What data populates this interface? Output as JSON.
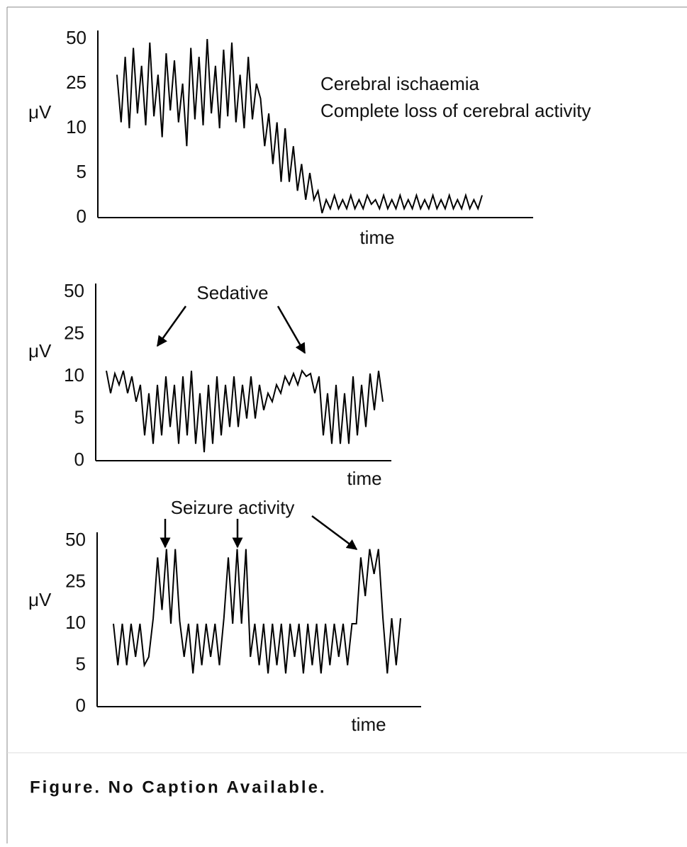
{
  "chart_data": [
    {
      "type": "line",
      "y_label": "μV",
      "x_label": "time",
      "annotations": [
        "Cerebral ischaemia",
        "Complete loss of cerebral activity"
      ],
      "values": [
        30,
        12,
        40,
        10,
        45,
        15,
        35,
        11,
        48,
        14,
        30,
        9,
        42,
        16,
        38,
        12,
        25,
        8,
        45,
        13,
        40,
        11,
        50,
        15,
        35,
        10,
        44,
        14,
        48,
        12,
        30,
        10,
        40,
        13,
        25,
        20,
        8,
        15,
        6,
        12,
        4,
        10,
        4,
        8,
        3,
        6,
        2,
        5,
        2,
        3,
        0.5,
        2,
        1,
        2.5,
        1,
        2,
        1,
        2.5,
        1,
        2,
        1,
        2.5,
        1.5,
        2,
        1,
        2.5,
        1,
        2,
        1,
        2.5,
        1,
        2,
        1,
        2.5,
        1,
        2,
        1,
        2.5,
        1,
        2,
        1,
        2.5,
        1,
        2,
        1,
        2.5,
        1,
        2,
        1,
        2.5
      ],
      "color": "#000000",
      "ylim": [
        0,
        50
      ],
      "yticks": [
        0,
        5,
        10,
        25,
        50
      ]
    },
    {
      "type": "line",
      "y_label": "μV",
      "x_label": "time",
      "annotations": [
        "Sedative"
      ],
      "values": [
        12,
        8,
        11,
        9,
        12,
        8,
        10,
        7,
        9,
        3,
        8,
        2,
        9,
        3,
        10,
        4,
        9,
        2,
        10,
        3,
        12,
        2,
        8,
        1,
        9,
        2,
        10,
        3,
        9,
        4,
        10,
        4,
        9,
        5,
        10,
        5,
        9,
        6,
        8,
        7,
        9,
        8,
        10,
        9,
        11,
        9,
        12,
        10,
        11,
        8,
        10,
        3,
        8,
        2,
        9,
        2,
        8,
        2,
        10,
        3,
        9,
        4,
        11,
        6,
        12,
        7
      ],
      "color": "#000000",
      "ylim": [
        0,
        50
      ],
      "yticks": [
        0,
        5,
        10,
        25,
        50
      ]
    },
    {
      "type": "line",
      "y_label": "μV",
      "x_label": "time",
      "annotations": [
        "Seizure activity"
      ],
      "values": [
        10,
        5,
        10,
        5,
        10,
        6,
        10,
        5,
        6,
        12,
        40,
        15,
        45,
        10,
        45,
        11,
        6,
        10,
        4,
        10,
        5,
        10,
        6,
        10,
        5,
        12,
        40,
        10,
        45,
        10,
        45,
        6,
        10,
        5,
        10,
        4,
        10,
        5,
        10,
        4,
        10,
        6,
        10,
        4,
        10,
        5,
        10,
        4,
        10,
        5,
        10,
        6,
        10,
        5,
        10,
        10,
        40,
        20,
        45,
        30,
        45,
        12,
        4,
        12,
        5,
        12
      ],
      "color": "#000000",
      "ylim": [
        0,
        50
      ],
      "yticks": [
        0,
        5,
        10,
        25,
        50
      ]
    }
  ],
  "caption": "Figure. No Caption Available."
}
